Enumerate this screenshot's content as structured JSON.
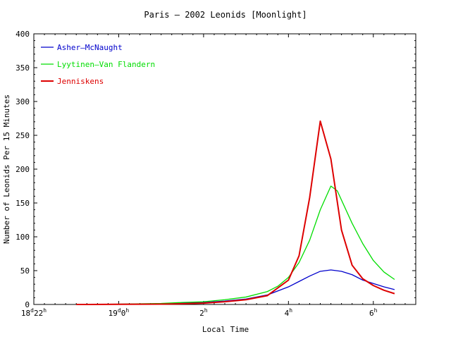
{
  "chart_data": {
    "type": "line",
    "title": "Paris — 2002 Leonids [Moonlight]",
    "xlabel": "Local Time",
    "ylabel": "Number of Leonids Per 15 Minutes",
    "xlim": [
      22,
      31
    ],
    "ylim": [
      0,
      400
    ],
    "grid": false,
    "legend_position": "top-left",
    "x_ticks": [
      {
        "value": 22,
        "main": "18",
        "sup1": "d",
        "mid": "22",
        "sup2": "h"
      },
      {
        "value": 24,
        "main": "19",
        "sup1": "d",
        "mid": "0",
        "sup2": "h"
      },
      {
        "value": 26,
        "main": "2",
        "sup1": "",
        "mid": "",
        "sup2": "h"
      },
      {
        "value": 28,
        "main": "4",
        "sup1": "",
        "mid": "",
        "sup2": "h"
      },
      {
        "value": 30,
        "main": "6",
        "sup1": "",
        "mid": "",
        "sup2": "h"
      }
    ],
    "y_ticks": [
      0,
      50,
      100,
      150,
      200,
      250,
      300,
      350,
      400
    ],
    "series": [
      {
        "name": "Asher—McNaught",
        "color": "#0000cc",
        "x": [
          23.0,
          24.0,
          25.0,
          25.5,
          26.0,
          26.5,
          27.0,
          27.5,
          28.0,
          28.25,
          28.5,
          28.75,
          29.0,
          29.25,
          29.5,
          29.75,
          30.0,
          30.25,
          30.5
        ],
        "y": [
          0,
          0.3,
          1,
          2,
          3,
          5,
          8,
          14,
          26,
          34,
          42,
          49,
          51,
          49,
          44,
          36,
          31,
          26,
          22
        ]
      },
      {
        "name": "Lyytinen—Van Flandern",
        "color": "#00dd00",
        "x": [
          23.0,
          24.0,
          25.0,
          25.5,
          26.0,
          26.5,
          27.0,
          27.5,
          27.75,
          28.0,
          28.25,
          28.5,
          28.75,
          29.0,
          29.15,
          29.5,
          29.75,
          30.0,
          30.25,
          30.5
        ],
        "y": [
          0,
          0.5,
          1.5,
          3,
          4,
          7,
          11,
          19,
          27,
          40,
          62,
          95,
          140,
          175,
          168,
          120,
          90,
          65,
          48,
          37
        ]
      },
      {
        "name": "Jenniskens",
        "color": "#dd0000",
        "x": [
          23.0,
          24.0,
          25.0,
          25.5,
          26.0,
          26.5,
          27.0,
          27.5,
          28.0,
          28.25,
          28.5,
          28.75,
          29.0,
          29.25,
          29.5,
          29.75,
          30.0,
          30.25,
          30.5
        ],
        "y": [
          0,
          0.2,
          0.5,
          1,
          2,
          4,
          7,
          13,
          36,
          72,
          158,
          271,
          215,
          110,
          58,
          38,
          28,
          21,
          16
        ]
      }
    ]
  }
}
